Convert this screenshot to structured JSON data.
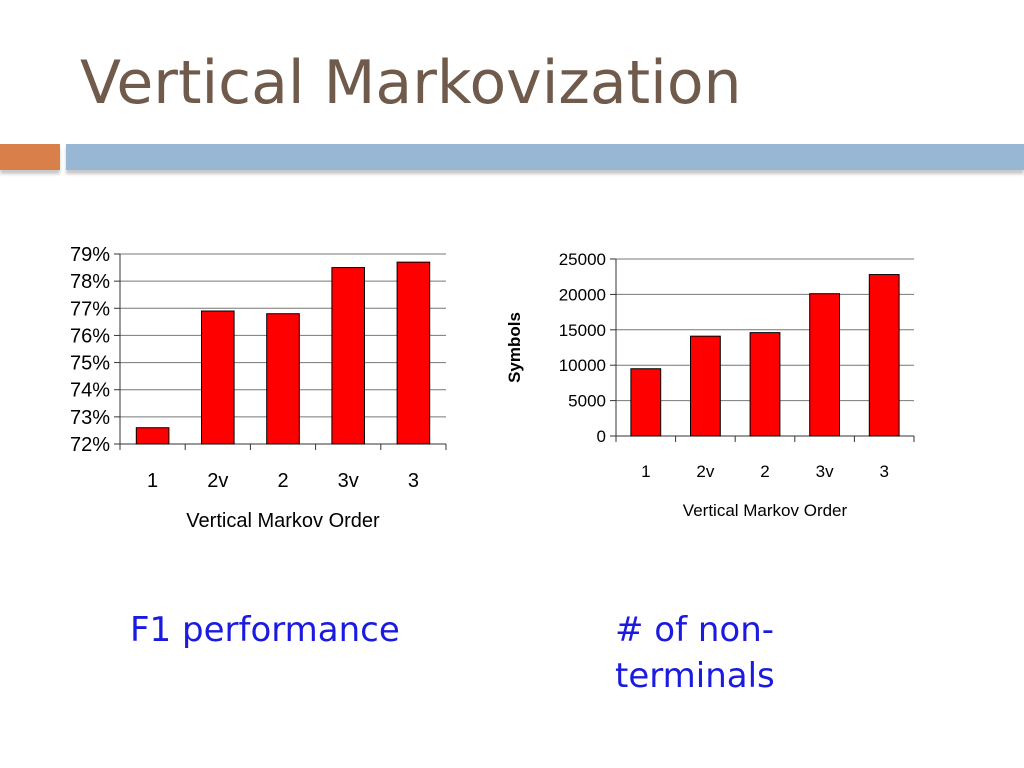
{
  "slide": {
    "title": "Vertical Markovization",
    "caption_left": "F1 performance",
    "caption_right_line1": "# of non-",
    "caption_right_line2": "terminals"
  },
  "colors": {
    "title": "#6f5a4b",
    "accent_orange": "#d9804a",
    "accent_blue": "#97b7d5",
    "bar_fill": "#ff0000",
    "caption": "#1a1ae0"
  },
  "chart_data": [
    {
      "type": "bar",
      "categories": [
        "1",
        "2v",
        "2",
        "3v",
        "3"
      ],
      "values": [
        72.6,
        76.9,
        76.8,
        78.5,
        78.7
      ],
      "ylim": [
        72,
        79
      ],
      "yticks": [
        "72%",
        "73%",
        "74%",
        "75%",
        "76%",
        "77%",
        "78%",
        "79%"
      ],
      "xlabel": "Vertical Markov Order",
      "ylabel": "",
      "grid": true
    },
    {
      "type": "bar",
      "categories": [
        "1",
        "2v",
        "2",
        "3v",
        "3"
      ],
      "values": [
        9500,
        14100,
        14600,
        20100,
        22800
      ],
      "ylim": [
        0,
        25000
      ],
      "yticks": [
        "0",
        "5000",
        "10000",
        "15000",
        "20000",
        "25000"
      ],
      "xlabel": "Vertical Markov Order",
      "ylabel": "Symbols",
      "grid": true
    }
  ]
}
